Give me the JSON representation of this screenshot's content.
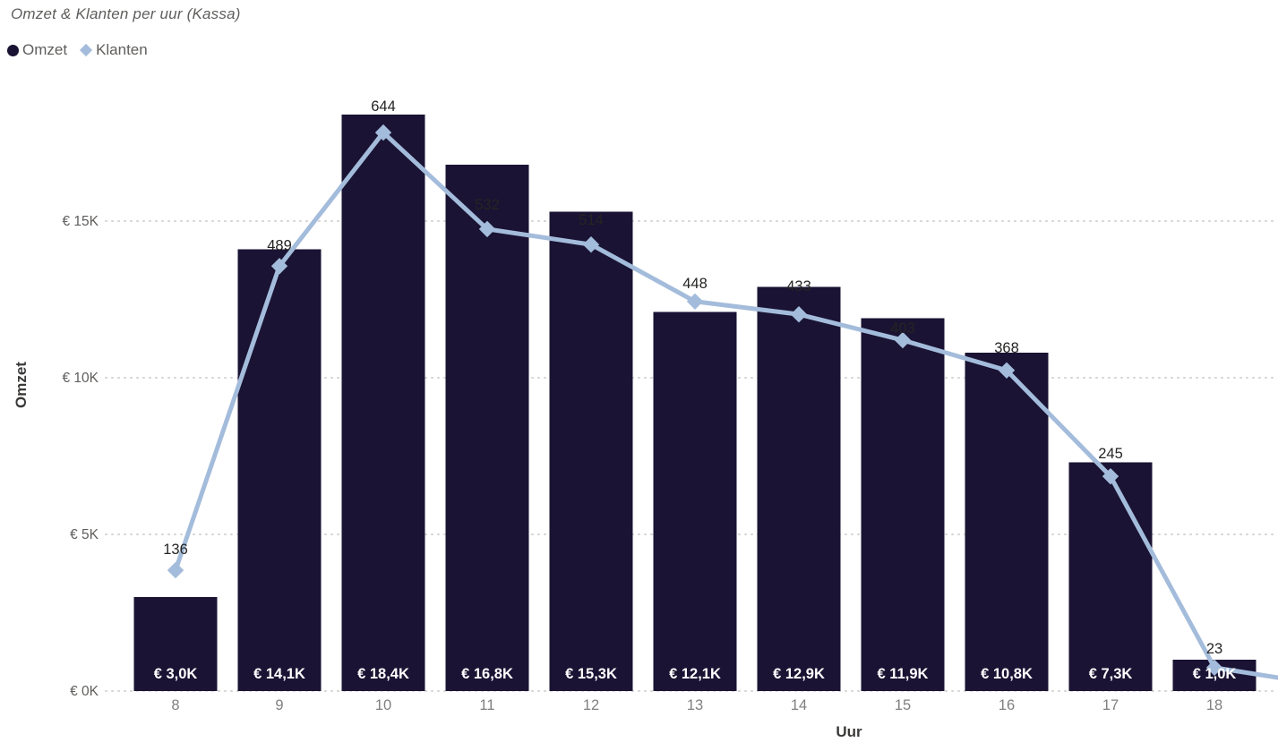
{
  "title": "Omzet & Klanten per uur (Kassa)",
  "legend": {
    "items": [
      {
        "label": "Omzet",
        "marker": "circle-icon",
        "color": "#1a1333"
      },
      {
        "label": "Klanten",
        "marker": "diamond-icon",
        "color": "#a4bcdb"
      }
    ]
  },
  "chart_data": {
    "type": "combo-bar-line",
    "title": "Omzet & Klanten per uur (Kassa)",
    "xlabel": "Uur",
    "ylabel": "Omzet",
    "categories": [
      8,
      9,
      10,
      11,
      12,
      13,
      14,
      15,
      16,
      17,
      18
    ],
    "series": [
      {
        "name": "Omzet",
        "type": "bar",
        "unit": "EUR (thousands)",
        "values_k": [
          3.0,
          14.1,
          18.4,
          16.8,
          15.3,
          12.1,
          12.9,
          11.9,
          10.8,
          7.3,
          1.0
        ],
        "labels": [
          "€ 3,0K",
          "€ 14,1K",
          "€ 18,4K",
          "€ 16,8K",
          "€ 15,3K",
          "€ 12,1K",
          "€ 12,9K",
          "€ 11,9K",
          "€ 10,8K",
          "€ 7,3K",
          "€ 1,0K"
        ]
      },
      {
        "name": "Klanten",
        "type": "line",
        "values": [
          136,
          489,
          644,
          532,
          514,
          448,
          433,
          403,
          368,
          245,
          23
        ],
        "labels": [
          "136",
          "489",
          "644",
          "532",
          "514",
          "448",
          "433",
          "403",
          "368",
          "245",
          "23"
        ]
      }
    ],
    "y_ticks": [
      {
        "label": "€ 0K",
        "value_k": 0
      },
      {
        "label": "€ 5K",
        "value_k": 5
      },
      {
        "label": "€ 10K",
        "value_k": 10
      },
      {
        "label": "€ 15K",
        "value_k": 15
      }
    ],
    "y_axis_range_k": [
      0,
      19.5
    ],
    "grid": "dotted-horizontal",
    "legend_position": "top-left",
    "line_extends_past_right_edge": true
  },
  "colors": {
    "bar": "#1a1333",
    "line": "#a4bcdb",
    "title_text": "#605e5c",
    "legend_text": "#605e5c",
    "y_tick_text": "#605e5c",
    "x_tick_text": "#808080",
    "axis_title_text": "#3b3a39",
    "bar_label_text": "#ffffff",
    "point_label_text": "#252423",
    "gridline": "#d4d4d4",
    "background": "#ffffff"
  }
}
